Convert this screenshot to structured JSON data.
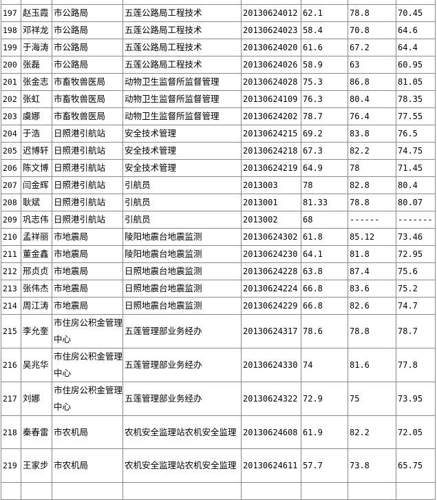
{
  "rows": [
    {
      "no": "197",
      "name": "赵玉霞",
      "dept": "市公路局",
      "position": "五莲公路局工程技术",
      "id": "20130624012",
      "score1": "62.1",
      "score2": "78.8",
      "total": "70.45"
    },
    {
      "no": "198",
      "name": "邓祥龙",
      "dept": "市公路局",
      "position": "五莲公路局工程技术",
      "id": "20130624023",
      "score1": "58.4",
      "score2": "70.8",
      "total": "64.6"
    },
    {
      "no": "199",
      "name": "于海涛",
      "dept": "市公路局",
      "position": "五莲公路局工程技术",
      "id": "20130624020",
      "score1": "61.6",
      "score2": "67.2",
      "total": "64.4"
    },
    {
      "no": "200",
      "name": "张磊",
      "dept": "市公路局",
      "position": "五莲公路局工程技术",
      "id": "20130624026",
      "score1": "58.9",
      "score2": "63",
      "total": "60.95"
    },
    {
      "no": "201",
      "name": "张金志",
      "dept": "市畜牧兽医局",
      "position": "动物卫生监督所监督管理",
      "id": "20130624028",
      "score1": "75.3",
      "score2": "86.8",
      "total": "81.05"
    },
    {
      "no": "202",
      "name": "张虹",
      "dept": "市畜牧兽医局",
      "position": "动物卫生监督所监督管理",
      "id": "20130624109",
      "score1": "76.3",
      "score2": "80.4",
      "total": "78.35"
    },
    {
      "no": "203",
      "name": "虞娜",
      "dept": "市畜牧兽医局",
      "position": "动物卫生监督所监督管理",
      "id": "20130624202",
      "score1": "78.7",
      "score2": "76.4",
      "total": "77.55"
    },
    {
      "no": "204",
      "name": "于浩",
      "dept": "日照港引航站",
      "position": "安全技术管理",
      "id": "20130624215",
      "score1": "69.2",
      "score2": "83.8",
      "total": "76.5"
    },
    {
      "no": "205",
      "name": "迟博轩",
      "dept": "日照港引航站",
      "position": "安全技术管理",
      "id": "20130624218",
      "score1": "67.3",
      "score2": "82.2",
      "total": "74.75"
    },
    {
      "no": "206",
      "name": "陈文博",
      "dept": "日照港引航站",
      "position": "安全技术管理",
      "id": "20130624219",
      "score1": "64.9",
      "score2": "78",
      "total": "71.45"
    },
    {
      "no": "207",
      "name": "闫金辉",
      "dept": "日照港引航站",
      "position": "引航员",
      "id": "2013003",
      "score1": "78",
      "score2": "82.8",
      "total": "80.4"
    },
    {
      "no": "208",
      "name": "耿斌",
      "dept": "日照港引航站",
      "position": "引航员",
      "id": "2013001",
      "score1": "81.33",
      "score2": "78.8",
      "total": "80.07"
    },
    {
      "no": "209",
      "name": "巩志伟",
      "dept": "日照港引航站",
      "position": "引航员",
      "id": "2013002",
      "score1": "68",
      "score2": "------",
      "total": "-------"
    },
    {
      "no": "210",
      "name": "孟祥丽",
      "dept": "市地震局",
      "position": "陵阳地震台地震监测",
      "id": "20130624302",
      "score1": "61.8",
      "score2": "85.12",
      "total": "73.46"
    },
    {
      "no": "211",
      "name": "董金鑫",
      "dept": "市地震局",
      "position": "陵阳地震台地震监测",
      "id": "20130624230",
      "score1": "64.1",
      "score2": "81.8",
      "total": "72.95"
    },
    {
      "no": "212",
      "name": "邢贞贞",
      "dept": "市地震局",
      "position": "日照地震台地震监测",
      "id": "20130624228",
      "score1": "63.8",
      "score2": "87.4",
      "total": "75.6"
    },
    {
      "no": "213",
      "name": "张伟杰",
      "dept": "市地震局",
      "position": "日照地震台地震监测",
      "id": "20130624224",
      "score1": "66.8",
      "score2": "83.6",
      "total": "75.2"
    },
    {
      "no": "214",
      "name": "周江涛",
      "dept": "市地震局",
      "position": "日照地震台地震监测",
      "id": "20130624229",
      "score1": "66.8",
      "score2": "82.6",
      "total": "74.7"
    },
    {
      "no": "215",
      "name": "李允奎",
      "dept": "市住房公积金管理中心",
      "position": "五莲管理部业务经办",
      "id": "20130624317",
      "score1": "78.6",
      "score2": "78.8",
      "total": "78.7"
    },
    {
      "no": "216",
      "name": "吴兆华",
      "dept": "市住房公积金管理中心",
      "position": "五莲管理部业务经办",
      "id": "20130624330",
      "score1": "74",
      "score2": "81.6",
      "total": "77.8"
    },
    {
      "no": "217",
      "name": "刘娜",
      "dept": "市住房公积金管理中心",
      "position": "五莲管理部业务经办",
      "id": "20130624322",
      "score1": "72.9",
      "score2": "75",
      "total": "73.95"
    },
    {
      "no": "218",
      "name": "秦春雷",
      "dept": "市农机局",
      "position": "农机安全监理站农机安全监理",
      "id": "20130624608",
      "score1": "61.9",
      "score2": "82.2",
      "total": "72.05"
    },
    {
      "no": "219",
      "name": "王家步",
      "dept": "市农机局",
      "position": "农机安全监理站农机安全监理",
      "id": "20130624611",
      "score1": "57.7",
      "score2": "73.8",
      "total": "65.75"
    }
  ]
}
